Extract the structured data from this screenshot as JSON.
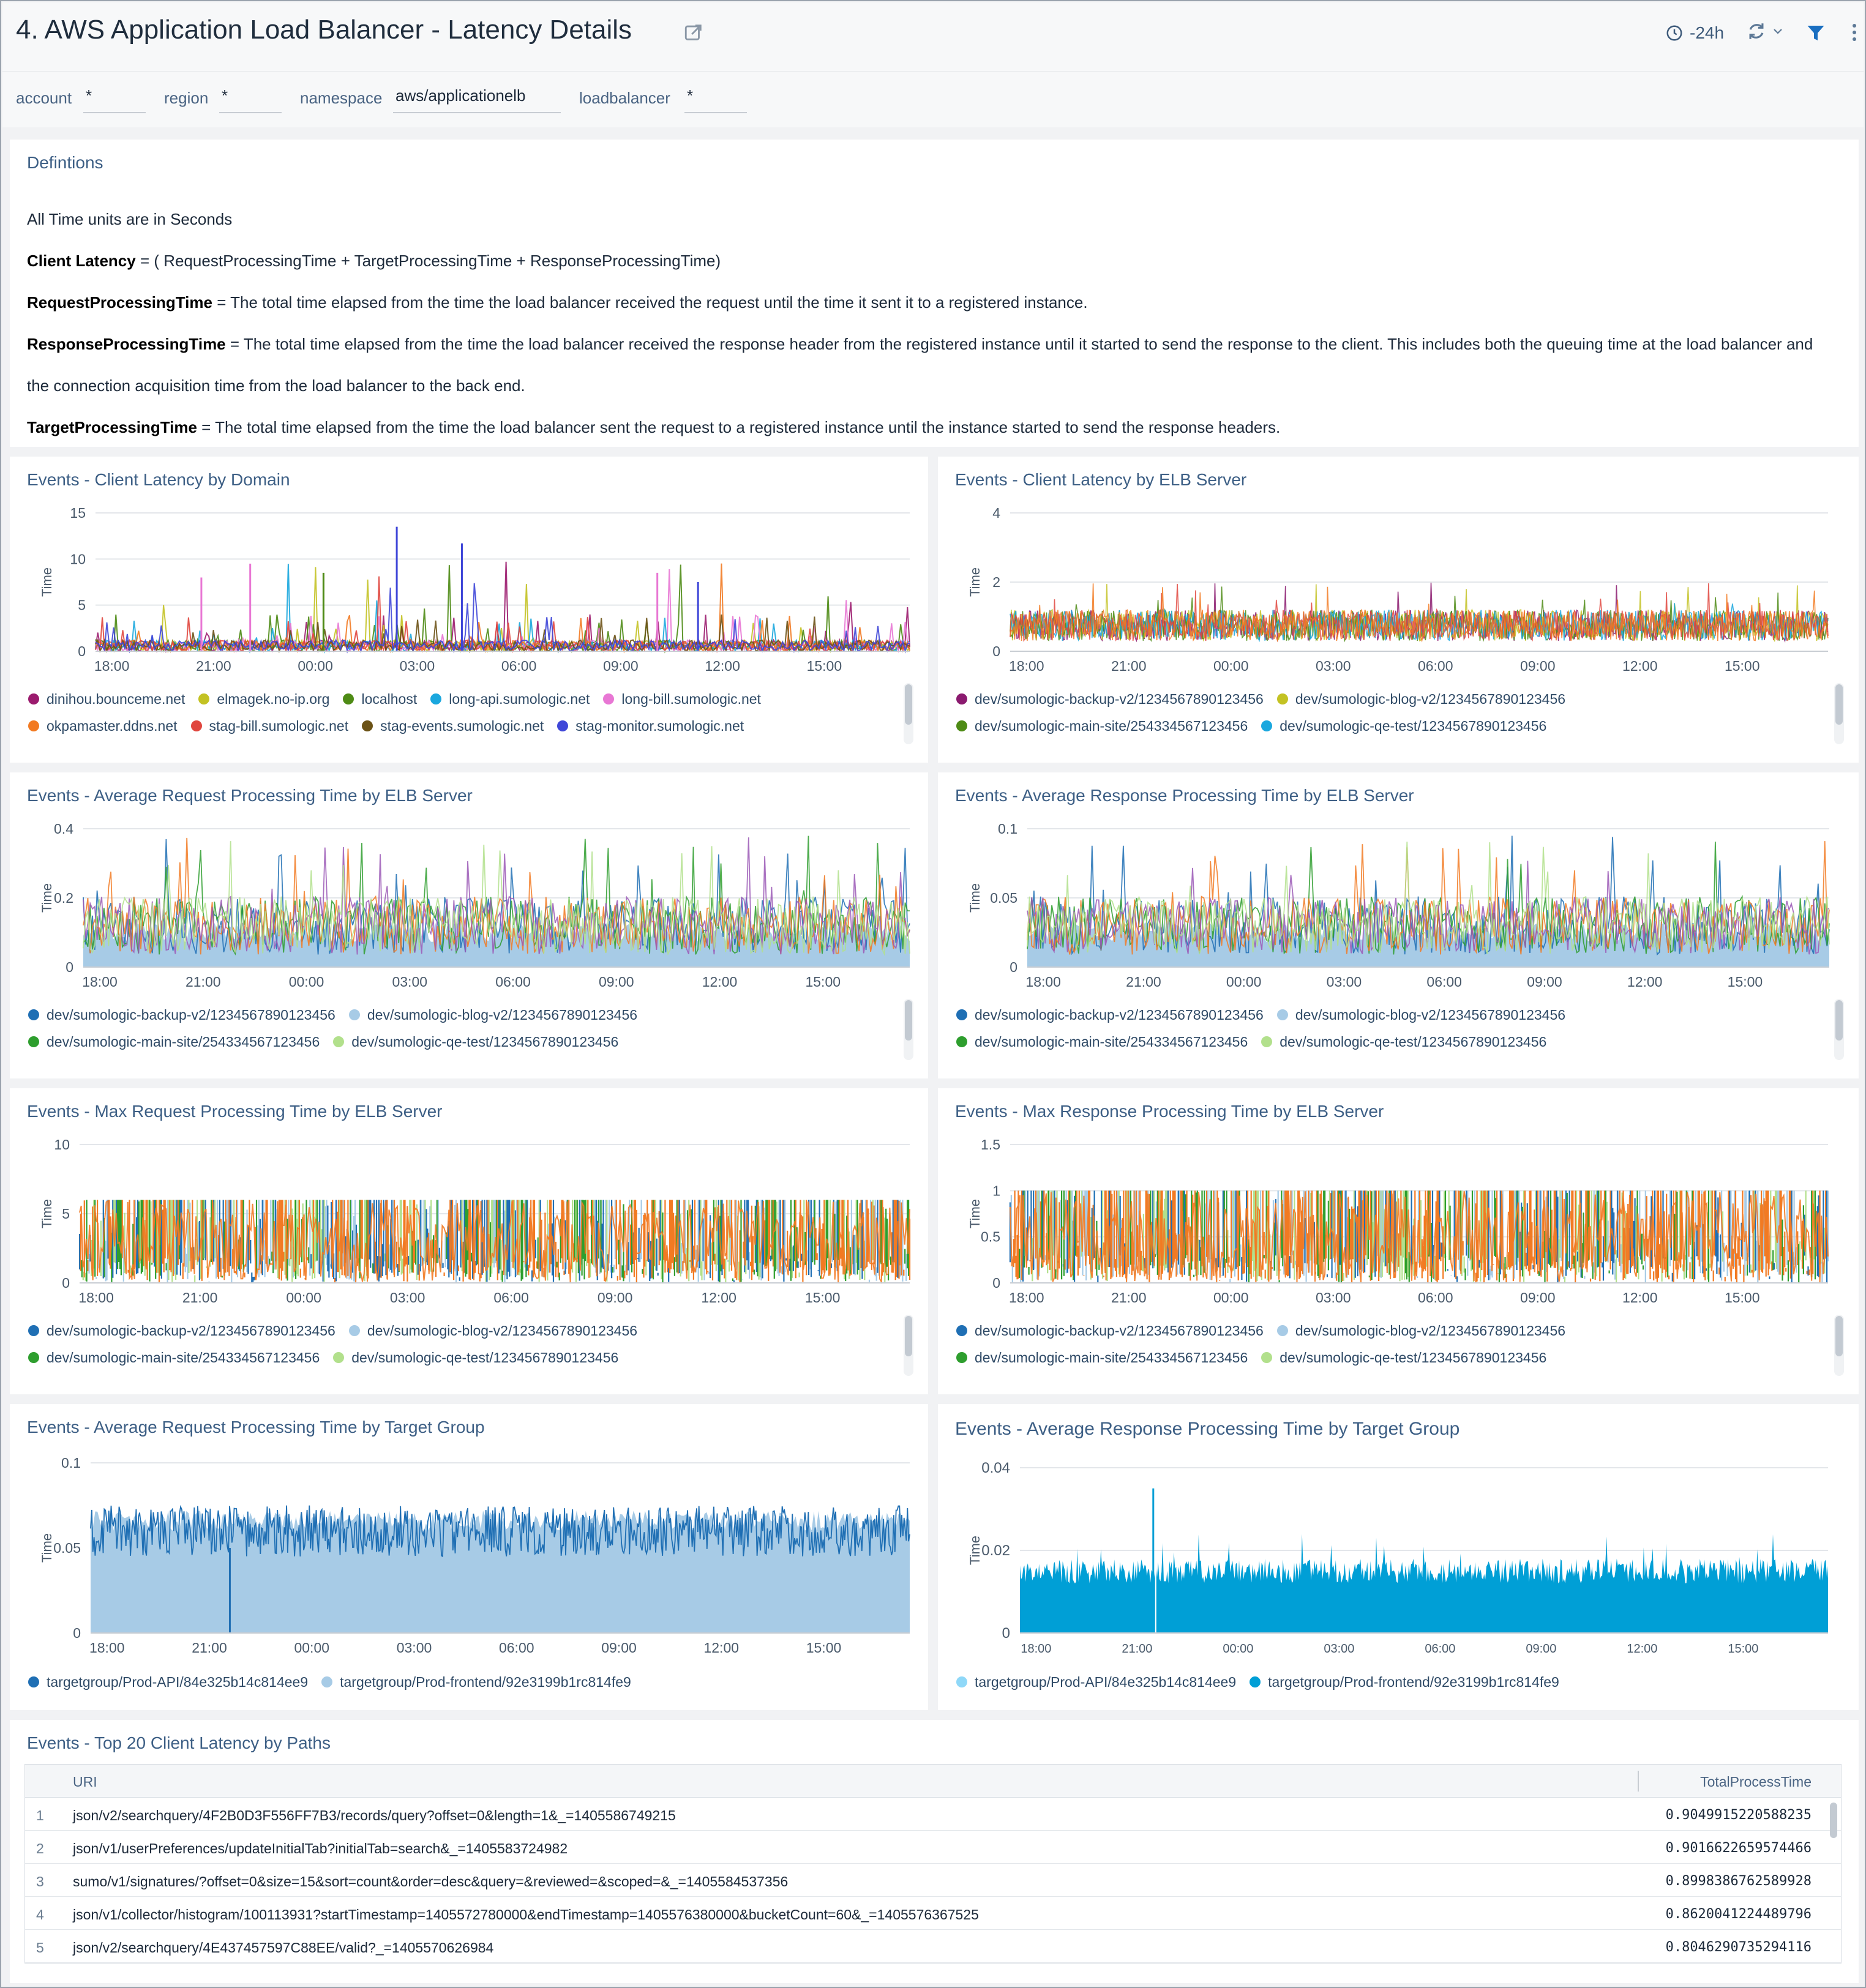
{
  "header": {
    "title": "4. AWS Application Load Balancer - Latency Details",
    "time_range": "-24h"
  },
  "filters": [
    {
      "label": "account",
      "value": "*"
    },
    {
      "label": "region",
      "value": "*"
    },
    {
      "label": "namespace",
      "value": "aws/applicationelb"
    },
    {
      "label": "loadbalancer",
      "value": "*"
    }
  ],
  "definitions": {
    "title": "Defintions",
    "units": "All Time units are in Seconds",
    "client_latency_term": "Client Latency",
    "client_latency_text": " = ( RequestProcessingTime + TargetProcessingTime + ResponseProcessingTime)",
    "request_term": "RequestProcessingTime",
    "request_text": " = The total time elapsed from the time the load balancer received the request until the time it sent it to a registered instance.",
    "response_term": "ResponseProcessingTime",
    "response_text": " = The total time elapsed from the time the load balancer received the response header from the registered instance until it started to send the response to the client. This includes both the queuing time at the load balancer and the connection acquisition time from the load balancer to the back end.",
    "target_term": "TargetProcessingTime",
    "target_text": " = The total time elapsed from the time the load balancer sent the request to a registered instance until the instance started to send the response headers."
  },
  "colors": {
    "title_blue": "#3d5f85",
    "bg": "#f1f2f4"
  },
  "chart_data": [
    {
      "id": "c1",
      "type": "line",
      "title": "Events - Client Latency by Domain",
      "ylabel": "Time",
      "ylim": [
        0,
        15
      ],
      "yticks": [
        "15",
        "10",
        "5",
        "0"
      ],
      "xticks": [
        "18:00",
        "21:00",
        "00:00",
        "03:00",
        "06:00",
        "09:00",
        "12:00",
        "15:00"
      ],
      "series": [
        {
          "name": "dinihou.bounceme.net",
          "color": "#9b1b6e"
        },
        {
          "name": "elmagek.no-ip.org",
          "color": "#c3c223"
        },
        {
          "name": "localhost",
          "color": "#4e8b15"
        },
        {
          "name": "long-api.sumologic.net",
          "color": "#1aa7de"
        },
        {
          "name": "long-bill.sumologic.net",
          "color": "#e877d4"
        },
        {
          "name": "okpamaster.ddns.net",
          "color": "#f27a22"
        },
        {
          "name": "stag-bill.sumologic.net",
          "color": "#e0463e"
        },
        {
          "name": "stag-events.sumologic.net",
          "color": "#6b5216"
        },
        {
          "name": "stag-monitor.sumologic.net",
          "color": "#3f47d8"
        }
      ]
    },
    {
      "id": "c2",
      "type": "line",
      "title": "Events - Client Latency by ELB Server",
      "ylabel": "Time",
      "ylim": [
        0,
        4
      ],
      "yticks": [
        "4",
        "2",
        "0"
      ],
      "xticks": [
        "18:00",
        "21:00",
        "00:00",
        "03:00",
        "06:00",
        "09:00",
        "12:00",
        "15:00"
      ],
      "series": [
        {
          "name": "dev/sumologic-backup-v2/1234567890123456",
          "color": "#8b1a6f"
        },
        {
          "name": "dev/sumologic-blog-v2/1234567890123456",
          "color": "#c3c223"
        },
        {
          "name": "dev/sumologic-main-site/254334567123456",
          "color": "#4e8b15"
        },
        {
          "name": "dev/sumologic-qe-test/1234567890123456",
          "color": "#1aa7de"
        }
      ]
    },
    {
      "id": "c3",
      "type": "area",
      "title": "Events - Average Request Processing Time by ELB Server",
      "ylabel": "Time",
      "ylim": [
        0,
        0.4
      ],
      "yticks": [
        "0.4",
        "0.2",
        "0"
      ],
      "xticks": [
        "18:00",
        "21:00",
        "00:00",
        "03:00",
        "06:00",
        "09:00",
        "12:00",
        "15:00"
      ],
      "series": [
        {
          "name": "dev/sumologic-backup-v2/1234567890123456",
          "color": "#1f6fb4"
        },
        {
          "name": "dev/sumologic-blog-v2/1234567890123456",
          "color": "#a7cbe6"
        },
        {
          "name": "dev/sumologic-main-site/254334567123456",
          "color": "#2e9e2e"
        },
        {
          "name": "dev/sumologic-qe-test/1234567890123456",
          "color": "#b2e08c"
        }
      ]
    },
    {
      "id": "c4",
      "type": "area",
      "title": "Events - Average Response Processing Time by ELB Server",
      "ylabel": "Time",
      "ylim": [
        0,
        0.1
      ],
      "yticks": [
        "0.1",
        "0.05",
        "0"
      ],
      "xticks": [
        "18:00",
        "21:00",
        "00:00",
        "03:00",
        "06:00",
        "09:00",
        "12:00",
        "15:00"
      ],
      "series": [
        {
          "name": "dev/sumologic-backup-v2/1234567890123456",
          "color": "#1f6fb4"
        },
        {
          "name": "dev/sumologic-blog-v2/1234567890123456",
          "color": "#a7cbe6"
        },
        {
          "name": "dev/sumologic-main-site/254334567123456",
          "color": "#2e9e2e"
        },
        {
          "name": "dev/sumologic-qe-test/1234567890123456",
          "color": "#b2e08c"
        }
      ]
    },
    {
      "id": "c5",
      "type": "area",
      "title": "Events - Max Request Processing Time by ELB Server",
      "ylabel": "Time",
      "ylim": [
        0,
        10
      ],
      "yticks": [
        "10",
        "5",
        "0"
      ],
      "xticks": [
        "18:00",
        "21:00",
        "00:00",
        "03:00",
        "06:00",
        "09:00",
        "12:00",
        "15:00"
      ],
      "series": [
        {
          "name": "dev/sumologic-backup-v2/1234567890123456",
          "color": "#1f6fb4"
        },
        {
          "name": "dev/sumologic-blog-v2/1234567890123456",
          "color": "#a7cbe6"
        },
        {
          "name": "dev/sumologic-main-site/254334567123456",
          "color": "#2e9e2e"
        },
        {
          "name": "dev/sumologic-qe-test/1234567890123456",
          "color": "#b2e08c"
        }
      ]
    },
    {
      "id": "c6",
      "type": "area",
      "title": "Events - Max Response Processing Time by ELB Server",
      "ylabel": "Time",
      "ylim": [
        0,
        1.5
      ],
      "yticks": [
        "1.5",
        "1",
        "0.5",
        "0"
      ],
      "xticks": [
        "18:00",
        "21:00",
        "00:00",
        "03:00",
        "06:00",
        "09:00",
        "12:00",
        "15:00"
      ],
      "series": [
        {
          "name": "dev/sumologic-backup-v2/1234567890123456",
          "color": "#1f6fb4"
        },
        {
          "name": "dev/sumologic-blog-v2/1234567890123456",
          "color": "#a7cbe6"
        },
        {
          "name": "dev/sumologic-main-site/254334567123456",
          "color": "#2e9e2e"
        },
        {
          "name": "dev/sumologic-qe-test/1234567890123456",
          "color": "#b2e08c"
        }
      ]
    },
    {
      "id": "c7",
      "type": "area",
      "title": "Events - Average Request Processing Time by Target Group",
      "ylabel": "Time",
      "ylim": [
        0,
        0.1
      ],
      "yticks": [
        "0.1",
        "0.05",
        "0"
      ],
      "xticks": [
        "18:00",
        "21:00",
        "00:00",
        "03:00",
        "06:00",
        "09:00",
        "12:00",
        "15:00"
      ],
      "series": [
        {
          "name": "targetgroup/Prod-API/84e325b14c814ee9",
          "color": "#1f6fb4"
        },
        {
          "name": "targetgroup/Prod-frontend/92e3199b1rc814fe9",
          "color": "#a7cbe6"
        }
      ]
    },
    {
      "id": "c8",
      "type": "area",
      "title": "Events - Average Response Processing Time by Target Group",
      "ylabel": "Time",
      "ylim": [
        0,
        0.04
      ],
      "yticks": [
        "0.04",
        "0.02",
        "0"
      ],
      "xticks": [
        "18:00",
        "21:00",
        "00:00",
        "03:00",
        "06:00",
        "09:00",
        "12:00",
        "15:00"
      ],
      "series": [
        {
          "name": "targetgroup/Prod-API/84e325b14c814ee9",
          "color": "#8fd8f8"
        },
        {
          "name": "targetgroup/Prod-frontend/92e3199b1rc814fe9",
          "color": "#009fd6"
        }
      ]
    }
  ],
  "table": {
    "title": "Events - Top 20 Client Latency by Paths",
    "columns": [
      "URI",
      "TotalProcessTime"
    ],
    "rows": [
      {
        "idx": "1",
        "uri": "json/v2/searchquery/4F2B0D3F556FF7B3/records/query?offset=0&length=1&_=1405586749215",
        "value": "0.9049915220588235"
      },
      {
        "idx": "2",
        "uri": "json/v1/userPreferences/updateInitialTab?initialTab=search&_=1405583724982",
        "value": "0.9016622659574466"
      },
      {
        "idx": "3",
        "uri": "sumo/v1/signatures/?offset=0&size=15&sort=count&order=desc&query=&reviewed=&scoped=&_=1405584537356",
        "value": "0.8998386762589928"
      },
      {
        "idx": "4",
        "uri": "json/v1/collector/histogram/100113931?startTimestamp=1405572780000&endTimestamp=1405576380000&bucketCount=60&_=1405576367525",
        "value": "0.8620041224489796"
      },
      {
        "idx": "5",
        "uri": "json/v2/searchquery/4E437457597C88EE/valid?_=1405570626984",
        "value": "0.8046290735294116"
      }
    ]
  }
}
